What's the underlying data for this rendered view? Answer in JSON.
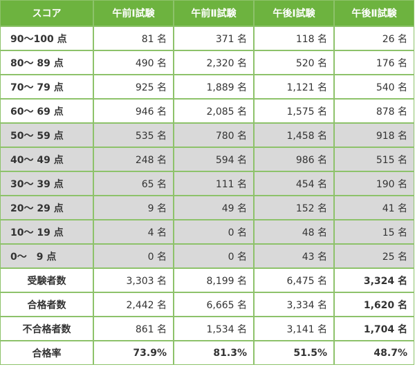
{
  "table": {
    "header": [
      "スコア",
      "午前Ⅰ試験",
      "午前Ⅱ試験",
      "午後Ⅰ試験",
      "午後Ⅱ試験"
    ],
    "rows": [
      [
        "90～100 点",
        "81 名",
        "371 名",
        "118 名",
        "26 名"
      ],
      [
        "80～ 89 点",
        "490 名",
        "2,320 名",
        "520 名",
        "176 名"
      ],
      [
        "70～ 79 点",
        "925 名",
        "1,889 名",
        "1,121 名",
        "540 名"
      ],
      [
        "60～ 69 点",
        "946 名",
        "2,085 名",
        "1,575 名",
        "878 名"
      ],
      [
        "50～ 59 点",
        "535 名",
        "780 名",
        "1,458 名",
        "918 名"
      ],
      [
        "40～ 49 点",
        "248 名",
        "594 名",
        "986 名",
        "515 名"
      ],
      [
        "30～ 39 点",
        "65 名",
        "111 名",
        "454 名",
        "190 名"
      ],
      [
        "20～ 29 点",
        "9 名",
        "49 名",
        "152 名",
        "41 名"
      ],
      [
        "10～ 19 点",
        "4 名",
        "0 名",
        "48 名",
        "15 名"
      ],
      [
        "0～　9 点",
        "0 名",
        "0 名",
        "43 名",
        "25 名"
      ],
      [
        "受験者数",
        "3,303 名",
        "8,199 名",
        "6,475 名",
        "3,324 名"
      ],
      [
        "合格者数",
        "2,442 名",
        "6,665 名",
        "3,334 名",
        "1,620 名"
      ],
      [
        "不合格者数",
        "861 名",
        "1,534 名",
        "3,141 名",
        "1,704 名"
      ],
      [
        "合格率",
        "73.9%",
        "81.3%",
        "51.5%",
        "48.7%"
      ]
    ]
  }
}
